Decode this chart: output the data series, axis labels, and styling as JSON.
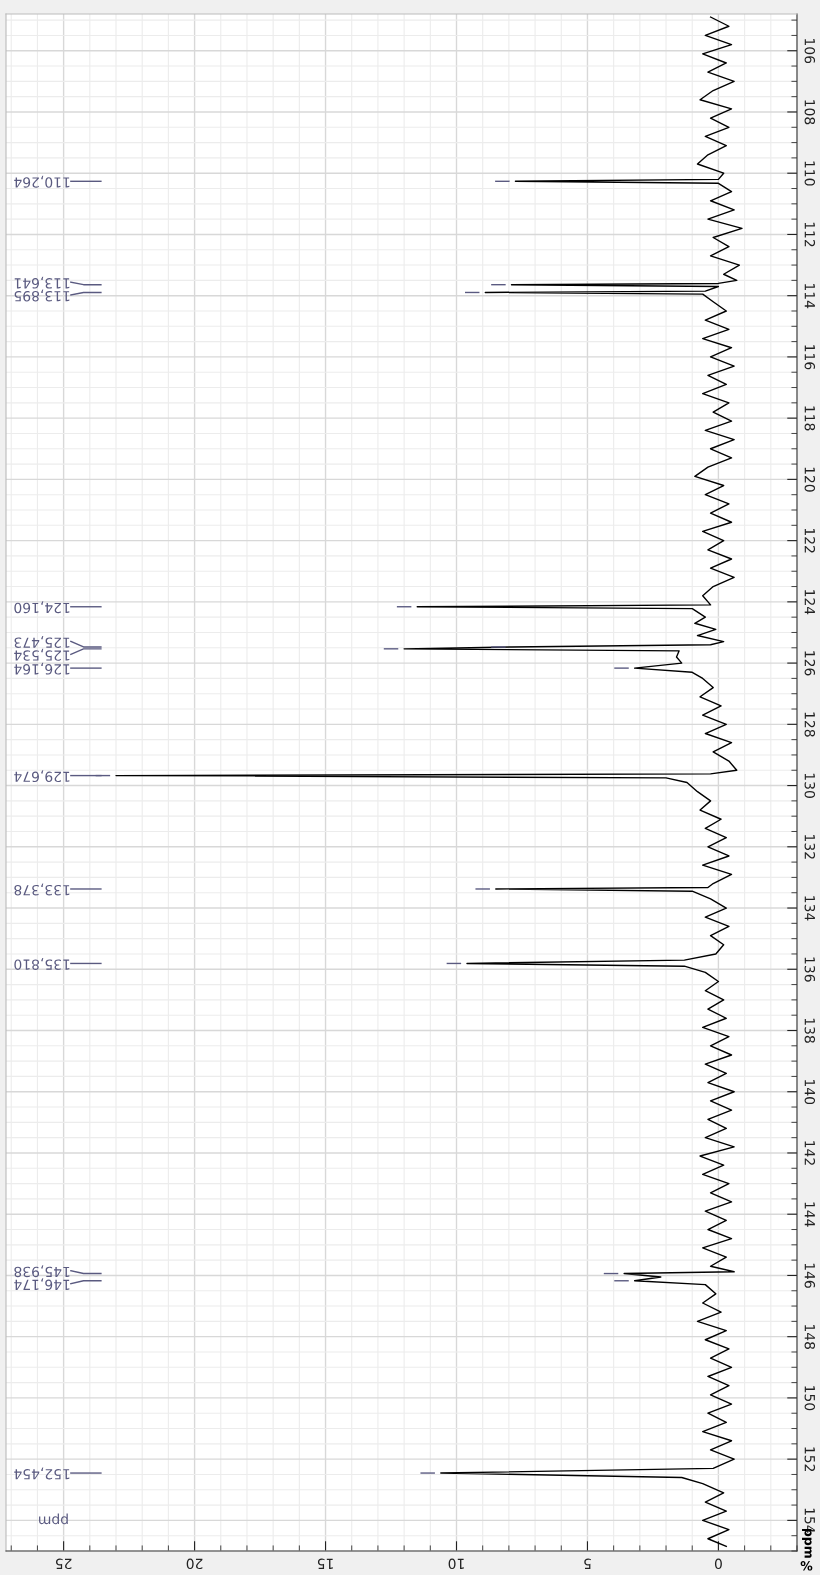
{
  "chart_data": {
    "type": "line",
    "orientation": "horizontal",
    "color": "#000000",
    "xlabel": "%",
    "ylabel": "ppm",
    "grid": true,
    "xlim": [
      27.2,
      -3.0
    ],
    "xticks": [
      0,
      5,
      10,
      15,
      20,
      25
    ],
    "ylim": [
      155.0,
      104.8
    ],
    "yticks": [
      106,
      108,
      110,
      112,
      114,
      116,
      118,
      120,
      122,
      124,
      126,
      128,
      130,
      132,
      134,
      136,
      138,
      140,
      142,
      144,
      146,
      148,
      150,
      152,
      154
    ],
    "x": [
      104.9,
      105.2,
      105.5,
      105.8,
      106.1,
      106.4,
      106.7,
      107.0,
      107.3,
      107.6,
      107.9,
      108.2,
      108.5,
      108.8,
      109.1,
      109.4,
      109.7,
      110.0,
      110.2,
      110.264,
      110.33,
      110.6,
      110.9,
      111.2,
      111.5,
      111.8,
      112.1,
      112.4,
      112.7,
      113.0,
      113.3,
      113.5,
      113.6,
      113.641,
      113.7,
      113.85,
      113.895,
      113.95,
      114.2,
      114.5,
      114.8,
      115.1,
      115.4,
      115.7,
      116.0,
      116.3,
      116.6,
      116.9,
      117.2,
      117.5,
      117.8,
      118.1,
      118.4,
      118.7,
      119.0,
      119.3,
      119.6,
      119.9,
      120.2,
      120.5,
      120.8,
      121.1,
      121.4,
      121.7,
      122.0,
      122.3,
      122.6,
      122.9,
      123.2,
      123.5,
      123.8,
      124.1,
      124.16,
      124.22,
      124.5,
      124.7,
      124.9,
      125.1,
      125.3,
      125.4,
      125.473,
      125.534,
      125.6,
      125.8,
      126.0,
      126.164,
      126.3,
      126.5,
      126.8,
      127.1,
      127.4,
      127.7,
      128.0,
      128.3,
      128.6,
      128.9,
      129.2,
      129.5,
      129.62,
      129.674,
      129.75,
      129.9,
      130.2,
      130.5,
      130.8,
      131.1,
      131.4,
      131.7,
      132.0,
      132.3,
      132.6,
      132.9,
      133.2,
      133.33,
      133.378,
      133.45,
      133.7,
      134.0,
      134.3,
      134.6,
      134.9,
      135.2,
      135.5,
      135.7,
      135.81,
      135.9,
      136.1,
      136.4,
      136.7,
      137.0,
      137.3,
      137.6,
      137.9,
      138.2,
      138.5,
      138.8,
      139.1,
      139.4,
      139.7,
      140.0,
      140.3,
      140.6,
      140.9,
      141.2,
      141.5,
      141.8,
      142.1,
      142.4,
      142.7,
      143.0,
      143.3,
      143.6,
      143.9,
      144.2,
      144.5,
      144.8,
      145.1,
      145.4,
      145.7,
      145.88,
      145.938,
      146.05,
      146.174,
      146.3,
      146.6,
      146.9,
      147.2,
      147.5,
      147.8,
      148.1,
      148.4,
      148.7,
      149.0,
      149.3,
      149.6,
      149.9,
      150.2,
      150.5,
      150.8,
      151.1,
      151.4,
      151.7,
      152.0,
      152.3,
      152.454,
      152.6,
      152.8,
      153.1,
      153.4,
      153.7,
      154.0,
      154.3,
      154.6,
      154.85
    ],
    "values": [
      0.3,
      -0.4,
      0.5,
      -0.5,
      0.6,
      -0.3,
      0.4,
      -0.6,
      0.2,
      0.7,
      -0.5,
      0.3,
      -0.4,
      0.5,
      -0.3,
      0.4,
      0.8,
      -0.2,
      0.0,
      7.75,
      0.0,
      -0.5,
      0.3,
      -0.6,
      0.4,
      -0.9,
      0.2,
      -0.4,
      0.3,
      -0.8,
      -0.2,
      -0.7,
      0.0,
      7.9,
      0.0,
      0.5,
      8.9,
      0.6,
      0.2,
      -0.3,
      0.5,
      -0.4,
      0.6,
      -0.5,
      0.3,
      -0.6,
      0.4,
      -0.3,
      0.6,
      -0.4,
      0.2,
      -0.5,
      0.5,
      -0.6,
      0.3,
      -0.5,
      0.4,
      0.9,
      -0.2,
      0.5,
      -0.4,
      0.3,
      -0.5,
      0.6,
      -0.2,
      0.4,
      -0.5,
      0.3,
      -0.6,
      0.2,
      0.6,
      0.3,
      11.5,
      1.0,
      0.5,
      0.9,
      0.1,
      0.8,
      -0.2,
      0.3,
      7.9,
      12.0,
      1.5,
      1.6,
      1.4,
      3.2,
      1.0,
      0.6,
      0.2,
      0.7,
      -0.1,
      0.6,
      -0.3,
      0.5,
      -0.5,
      0.2,
      -0.4,
      -0.7,
      0.3,
      23.0,
      2.0,
      1.2,
      0.8,
      0.3,
      0.7,
      -0.1,
      0.5,
      -0.3,
      0.4,
      -0.4,
      0.6,
      -0.5,
      0.2,
      0.4,
      8.5,
      1.0,
      0.3,
      -0.3,
      0.5,
      -0.4,
      0.3,
      -0.2,
      0.1,
      1.3,
      9.6,
      1.3,
      0.5,
      0.0,
      0.5,
      -0.2,
      0.4,
      -0.3,
      0.6,
      -0.4,
      0.3,
      -0.5,
      0.5,
      -0.3,
      0.4,
      -0.6,
      0.3,
      -0.5,
      0.4,
      -0.3,
      0.5,
      -0.6,
      0.7,
      -0.2,
      0.6,
      -0.4,
      0.3,
      -0.5,
      0.5,
      -0.3,
      0.4,
      -0.5,
      0.6,
      -0.3,
      0.3,
      -0.6,
      3.6,
      2.2,
      3.2,
      0.5,
      0.1,
      0.6,
      -0.1,
      0.8,
      -0.3,
      0.5,
      -0.4,
      0.3,
      -0.5,
      0.4,
      -0.4,
      0.3,
      -0.5,
      0.4,
      -0.3,
      0.6,
      -0.5,
      0.3,
      -0.6,
      0.2,
      10.6,
      1.4,
      0.6,
      -0.2,
      0.5,
      -0.3,
      0.6,
      -0.4,
      0.4,
      -0.3
    ],
    "annotations": [
      "ppm",
      "110,264",
      "113,641",
      "113,895",
      "124,160",
      "125,473",
      "125,534",
      "126,164",
      "129,674",
      "133,378",
      "135,810",
      "145,938",
      "146,174",
      "152,454"
    ]
  }
}
